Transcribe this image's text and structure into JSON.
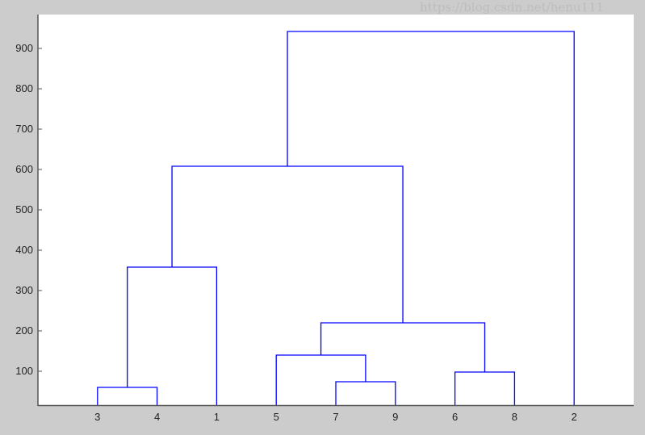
{
  "chart_data": {
    "type": "dendrogram",
    "title": "",
    "xlabel": "",
    "ylabel": "",
    "ylim": [
      16,
      984
    ],
    "yticks": [
      100,
      200,
      300,
      400,
      500,
      600,
      700,
      800,
      900
    ],
    "leaf_order": [
      "3",
      "4",
      "1",
      "5",
      "7",
      "9",
      "6",
      "8",
      "2"
    ],
    "links": [
      {
        "id": "c10",
        "left": "3",
        "right": "4",
        "height": 60
      },
      {
        "id": "c11",
        "left": "7",
        "right": "9",
        "height": 74
      },
      {
        "id": "c12",
        "left": "6",
        "right": "8",
        "height": 98
      },
      {
        "id": "c13",
        "left": "5",
        "right": "c11",
        "height": 140
      },
      {
        "id": "c14",
        "left": "c13",
        "right": "c12",
        "height": 220
      },
      {
        "id": "c15",
        "left": "c10",
        "right": "1",
        "height": 358
      },
      {
        "id": "c16",
        "left": "c15",
        "right": "c14",
        "height": 608
      },
      {
        "id": "c17",
        "left": "c16",
        "right": "2",
        "height": 942
      }
    ],
    "grid": false,
    "line_color": "#0000ff"
  },
  "watermark": "https://blog.csdn.net/henu111"
}
